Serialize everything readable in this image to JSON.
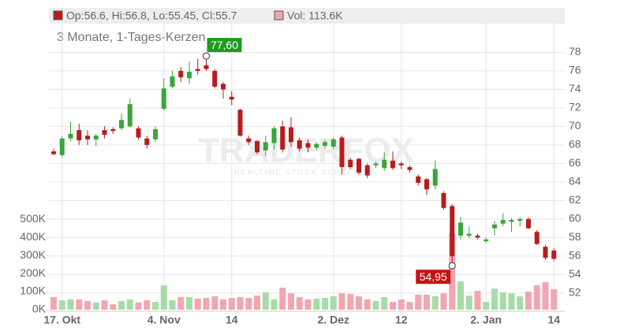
{
  "chart_data": {
    "type": "candlestick",
    "legend_ohlc": "Op:56.6, Hi:56.8, Lo:55.45, Cl:55.7",
    "legend_volume": "Vol: 113.6K",
    "subtitle": "3 Monate, 1-Tages-Kerzen",
    "watermark": "TRADERFOX",
    "watermark_sub": "REALTIME STOCK SCREENING",
    "categories": [
      null,
      "17. Okt",
      null,
      null,
      null,
      null,
      null,
      null,
      null,
      null,
      null,
      null,
      null,
      "4. Nov",
      null,
      null,
      null,
      null,
      null,
      null,
      null,
      "14",
      null,
      null,
      null,
      null,
      null,
      null,
      null,
      null,
      null,
      null,
      null,
      "2. Dez",
      null,
      null,
      null,
      null,
      null,
      null,
      null,
      "12",
      null,
      null,
      null,
      null,
      null,
      null,
      null,
      null,
      null,
      "2. Jan",
      null,
      null,
      null,
      null,
      null,
      null,
      null,
      "14"
    ],
    "open": [
      67.3,
      66.9,
      68.7,
      69.6,
      69.0,
      68.6,
      69.6,
      69.7,
      69.8,
      70.0,
      69.8,
      68.7,
      68.6,
      71.9,
      74.3,
      76.0,
      75.2,
      76.2,
      76.6,
      76.0,
      74.6,
      73.2,
      71.8,
      68.7,
      68.4,
      67.4,
      68.2,
      70.0,
      69.9,
      68.5,
      68.2,
      67.7,
      67.9,
      67.8,
      68.8,
      66.4,
      66.5,
      65.8,
      65.8,
      65.5,
      66.3,
      66.0,
      65.6,
      64.6,
      64.3,
      63.6,
      62.8,
      61.4,
      58.2,
      58.2,
      58.2,
      57.6,
      59.0,
      59.5,
      59.7,
      59.8,
      60.0,
      58.6,
      57.0,
      56.6
    ],
    "high": [
      67.6,
      68.9,
      70.5,
      70.3,
      69.6,
      69.2,
      70.0,
      69.9,
      71.4,
      73.0,
      70.0,
      69.0,
      70.0,
      75.2,
      76.0,
      76.4,
      77.0,
      77.3,
      77.6,
      76.2,
      74.8,
      73.8,
      71.9,
      69.0,
      68.5,
      69.0,
      70.0,
      70.6,
      71.0,
      68.8,
      68.6,
      68.3,
      68.6,
      68.8,
      69.0,
      66.6,
      66.6,
      66.0,
      66.2,
      67.2,
      67.3,
      66.2,
      65.8,
      64.8,
      64.4,
      66.3,
      63.0,
      61.6,
      60.2,
      59.2,
      58.4,
      58.0,
      59.8,
      60.6,
      60.1,
      60.2,
      60.2,
      58.8,
      57.2,
      56.8
    ],
    "low": [
      66.9,
      66.7,
      68.4,
      68.0,
      68.0,
      67.9,
      68.7,
      69.2,
      69.6,
      69.9,
      68.6,
      67.6,
      68.3,
      71.7,
      74.1,
      74.8,
      74.6,
      75.6,
      76.0,
      74.1,
      73.0,
      72.3,
      68.9,
      68.0,
      67.0,
      66.8,
      67.5,
      67.2,
      67.8,
      67.3,
      67.2,
      67.4,
      67.6,
      67.5,
      64.8,
      65.4,
      64.8,
      64.4,
      65.5,
      65.2,
      65.3,
      65.4,
      65.0,
      63.6,
      62.6,
      63.2,
      61.0,
      54.95,
      57.8,
      57.9,
      57.8,
      57.4,
      58.2,
      59.2,
      58.6,
      59.2,
      58.9,
      57.2,
      55.6,
      55.45
    ],
    "close": [
      67.0,
      68.7,
      69.2,
      68.5,
      68.6,
      69.0,
      69.1,
      69.5,
      70.7,
      72.4,
      68.8,
      68.0,
      69.7,
      74.1,
      75.4,
      75.3,
      75.9,
      76.0,
      76.2,
      74.3,
      74.0,
      72.9,
      69.0,
      68.3,
      67.2,
      68.3,
      69.8,
      67.5,
      68.3,
      67.6,
      67.7,
      68.1,
      68.3,
      68.6,
      65.6,
      65.6,
      65.0,
      64.7,
      66.0,
      66.4,
      65.5,
      65.8,
      65.3,
      63.9,
      63.2,
      65.4,
      61.2,
      56.0,
      59.6,
      58.4,
      58.0,
      57.8,
      59.4,
      59.9,
      59.9,
      60.0,
      59.0,
      57.3,
      55.8,
      55.7
    ],
    "volume": [
      70000,
      52000,
      57000,
      57000,
      48000,
      40000,
      52000,
      30000,
      48000,
      57000,
      40000,
      52000,
      43000,
      135000,
      52000,
      70000,
      70000,
      61000,
      65000,
      74000,
      57000,
      65000,
      70000,
      65000,
      78000,
      96000,
      57000,
      122000,
      91000,
      70000,
      57000,
      61000,
      65000,
      74000,
      91000,
      87000,
      74000,
      57000,
      48000,
      70000,
      43000,
      57000,
      43000,
      83000,
      83000,
      74000,
      91000,
      420000,
      157000,
      78000,
      104000,
      43000,
      117000,
      96000,
      91000,
      74000,
      100000,
      135000,
      152000,
      113600
    ],
    "ylim": [
      50.2,
      81.1
    ],
    "yticks": [
      52,
      54,
      56,
      58,
      60,
      62,
      64,
      66,
      68,
      70,
      72,
      74,
      76,
      78
    ],
    "volume_lim": [
      0,
      1580000
    ],
    "volume_ticks": [
      {
        "value": 0,
        "label": "0K"
      },
      {
        "value": 100000,
        "label": "100K"
      },
      {
        "value": 200000,
        "label": "200K"
      },
      {
        "value": 300000,
        "label": "300K"
      },
      {
        "value": 400000,
        "label": "400K"
      },
      {
        "value": 500000,
        "label": "500K"
      }
    ],
    "grid": true,
    "up_color": "#3aa53a",
    "down_color": "#b81c1c",
    "volume_up_color": "#a9dba9",
    "volume_down_color": "#f2a6b0",
    "annotations": [
      {
        "label": "77,60",
        "value": 77.6,
        "color": "#1f9a1f"
      },
      {
        "label": "54,95",
        "value": 54.95,
        "color": "#c41414"
      }
    ]
  }
}
